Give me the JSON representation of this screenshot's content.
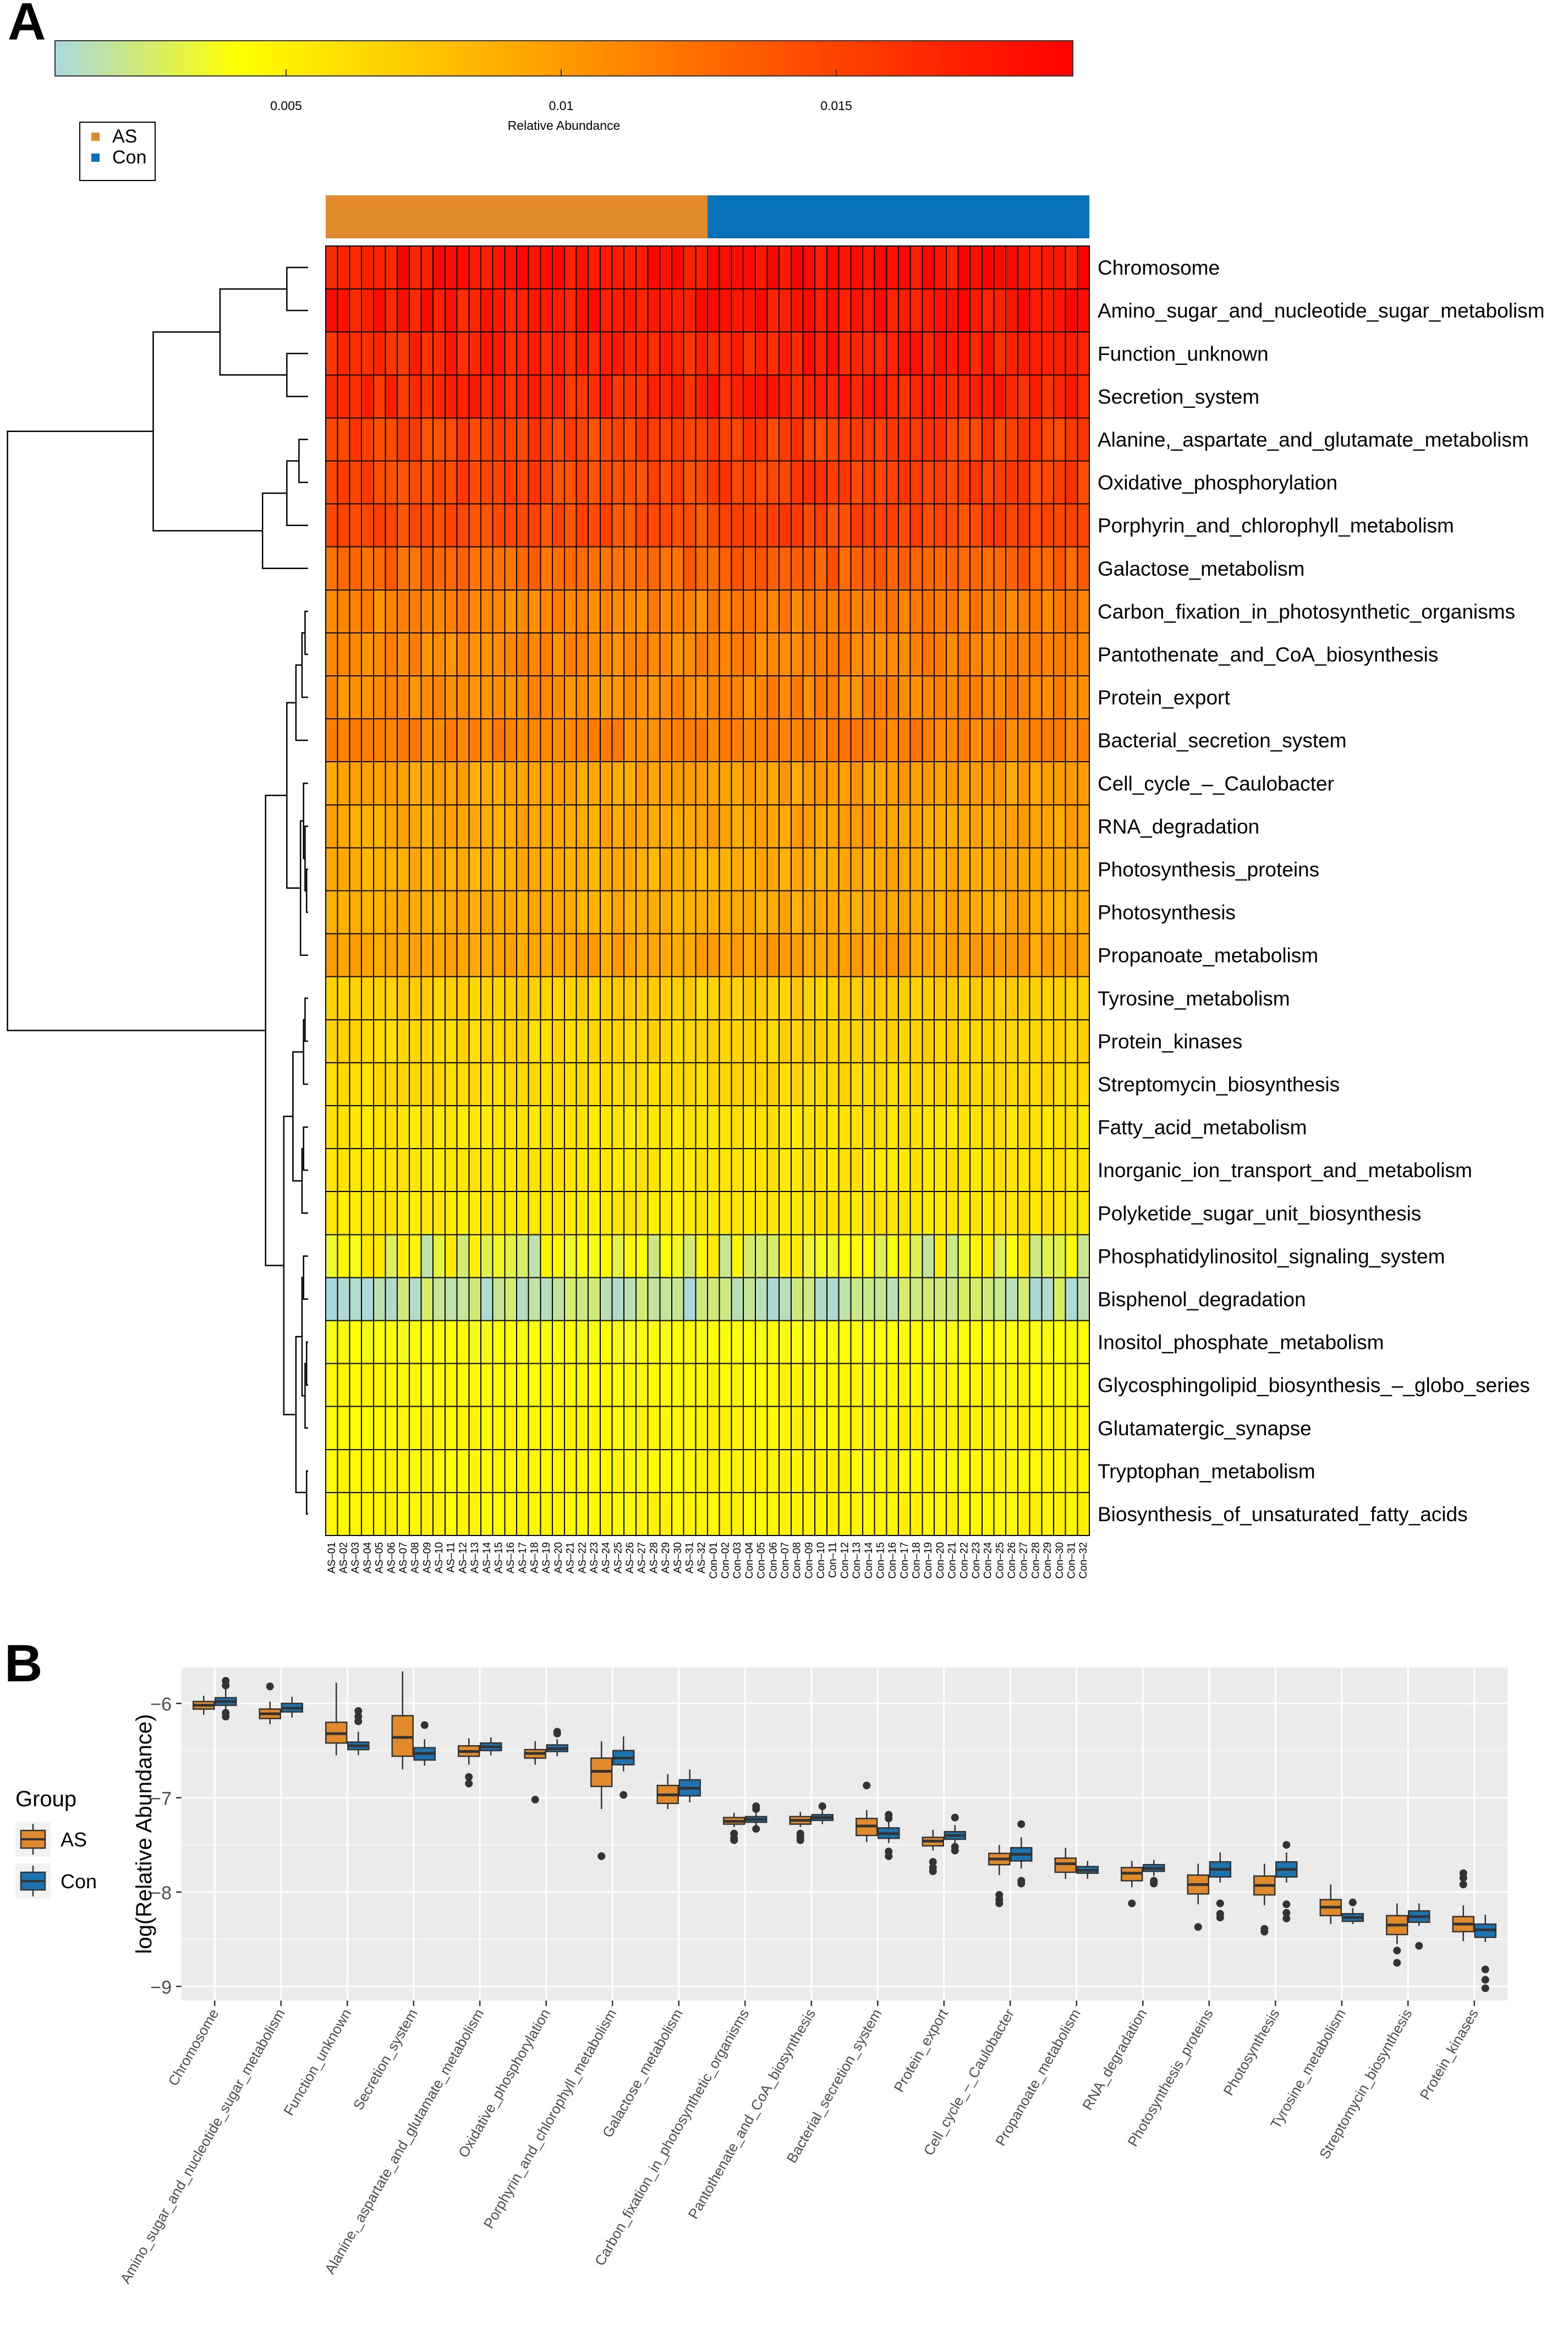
{
  "panelA": {
    "label": "A",
    "colorbar": {
      "title": "Relative Abundance",
      "ticks": [
        "0.005",
        "0.01",
        "0.015"
      ],
      "tick_values": [
        0.005,
        0.01,
        0.015
      ],
      "range": [
        0.0008,
        0.0193
      ],
      "colors": [
        "#a8d8e2",
        "#ffff00",
        "#ff9a00",
        "#ff5000",
        "#ff0000"
      ]
    },
    "legend": {
      "items": [
        {
          "label": "AS",
          "color": "#e08a2b"
        },
        {
          "label": "Con",
          "color": "#0872b8"
        }
      ]
    },
    "samples": [
      "AS–01",
      "AS–02",
      "AS–03",
      "AS–04",
      "AS–05",
      "AS–06",
      "AS–07",
      "AS–08",
      "AS–09",
      "AS–10",
      "AS–11",
      "AS–12",
      "AS–13",
      "AS–14",
      "AS–15",
      "AS–16",
      "AS–17",
      "AS–18",
      "AS–19",
      "AS–20",
      "AS–21",
      "AS–22",
      "AS–23",
      "AS–24",
      "AS–25",
      "AS–26",
      "AS–27",
      "AS–28",
      "AS–29",
      "AS–30",
      "AS–31",
      "AS–32",
      "Con–01",
      "Con–02",
      "Con–03",
      "Con–04",
      "Con–05",
      "Con–06",
      "Con–07",
      "Con–08",
      "Con–09",
      "Con–10",
      "Con–11",
      "Con–12",
      "Con–13",
      "Con–14",
      "Con–15",
      "Con–16",
      "Con–17",
      "Con–18",
      "Con–19",
      "Con–20",
      "Con–21",
      "Con–22",
      "Con–23",
      "Con–24",
      "Con–25",
      "Con–26",
      "Con–27",
      "Con–28",
      "Con–29",
      "Con–30",
      "Con–31",
      "Con–32"
    ],
    "sample_groups": {
      "AS": 32,
      "Con": 32
    },
    "rows": [
      {
        "label": "Chromosome",
        "base": 0.0178
      },
      {
        "label": "Amino_sugar_and_nucleotide_sugar_metabolism",
        "base": 0.0176
      },
      {
        "label": "Function_unknown",
        "base": 0.0168
      },
      {
        "label": "Secretion_system",
        "base": 0.0166
      },
      {
        "label": "Alanine,_aspartate_and_glutamate_metabolism",
        "base": 0.015
      },
      {
        "label": "Oxidative_phosphorylation",
        "base": 0.0148
      },
      {
        "label": "Porphyrin_and_chlorophyll_metabolism",
        "base": 0.0144
      },
      {
        "label": "Galactose_metabolism",
        "base": 0.0128
      },
      {
        "label": "Carbon_fixation_in_photosynthetic_organisms",
        "base": 0.0112
      },
      {
        "label": "Pantothenate_and_CoA_biosynthesis",
        "base": 0.011
      },
      {
        "label": "Protein_export",
        "base": 0.0108
      },
      {
        "label": "Bacterial_secretion_system",
        "base": 0.0112
      },
      {
        "label": "Cell_cycle_–_Caulobacter",
        "base": 0.0094
      },
      {
        "label": "RNA_degradation",
        "base": 0.0092
      },
      {
        "label": "Photosynthesis_proteins",
        "base": 0.0088
      },
      {
        "label": "Photosynthesis",
        "base": 0.0088
      },
      {
        "label": "Propanoate_metabolism",
        "base": 0.0094
      },
      {
        "label": "Tyrosine_metabolism",
        "base": 0.0068
      },
      {
        "label": "Protein_kinases",
        "base": 0.0064
      },
      {
        "label": "Streptomycin_biosynthesis",
        "base": 0.0062
      },
      {
        "label": "Fatty_acid_metabolism",
        "base": 0.0056
      },
      {
        "label": "Inorganic_ion_transport_and_metabolism",
        "base": 0.0055
      },
      {
        "label": "Polyketide_sugar_unit_biosynthesis",
        "base": 0.0054
      },
      {
        "label": "Phosphatidylinositol_signaling_system",
        "base": 0.0032
      },
      {
        "label": "Bisphenol_degradation",
        "base": 0.0016
      },
      {
        "label": "Inositol_phosphate_metabolism",
        "base": 0.004
      },
      {
        "label": "Glycosphingolipid_biosynthesis_–_globo_series",
        "base": 0.0044
      },
      {
        "label": "Glutamatergic_synapse",
        "base": 0.0046
      },
      {
        "label": "Tryptophan_metabolism",
        "base": 0.0045
      },
      {
        "label": "Biosynthesis_of_unsaturated_fatty_acids",
        "base": 0.0046
      }
    ]
  },
  "panelB": {
    "label": "B",
    "legend_title": "Group",
    "legend_items": [
      {
        "label": "AS",
        "color": "#e08a2b"
      },
      {
        "label": "Con",
        "color": "#1d72b0"
      }
    ]
  },
  "chart_data": [
    {
      "type": "heatmap",
      "title": "",
      "colorbar_label": "Relative Abundance",
      "colorbar_ticks": [
        0.005,
        0.01,
        0.015
      ],
      "column_groups": [
        "AS",
        "Con"
      ],
      "n_columns_per_group": 32,
      "rows": [
        "Chromosome",
        "Amino_sugar_and_nucleotide_sugar_metabolism",
        "Function_unknown",
        "Secretion_system",
        "Alanine,_aspartate_and_glutamate_metabolism",
        "Oxidative_phosphorylation",
        "Porphyrin_and_chlorophyll_metabolism",
        "Galactose_metabolism",
        "Carbon_fixation_in_photosynthetic_organisms",
        "Pantothenate_and_CoA_biosynthesis",
        "Protein_export",
        "Bacterial_secretion_system",
        "Cell_cycle_–_Caulobacter",
        "RNA_degradation",
        "Photosynthesis_proteins",
        "Photosynthesis",
        "Propanoate_metabolism",
        "Tyrosine_metabolism",
        "Protein_kinases",
        "Streptomycin_biosynthesis",
        "Fatty_acid_metabolism",
        "Inorganic_ion_transport_and_metabolism",
        "Polyketide_sugar_unit_biosynthesis",
        "Phosphatidylinositol_signaling_system",
        "Bisphenol_degradation",
        "Inositol_phosphate_metabolism",
        "Glycosphingolipid_biosynthesis_–_globo_series",
        "Glutamatergic_synapse",
        "Tryptophan_metabolism",
        "Biosynthesis_of_unsaturated_fatty_acids"
      ]
    },
    {
      "type": "box",
      "title": "",
      "xlabel": "",
      "ylabel": "log(Relative Abundance)",
      "ylim": [
        -9.15,
        -5.62
      ],
      "yticks": [
        -6,
        -7,
        -8,
        -9
      ],
      "legend_title": "Group",
      "categories": [
        "Chromosome",
        "Amino_sugar_and_nucleotide_sugar_metabolism",
        "Function_unknown",
        "Secretion_system",
        "Alanine,_aspartate_and_glutamate_metabolism",
        "Oxidative_phosphorylation",
        "Porphyrin_and_chlorophyll_metabolism",
        "Galactose_metabolism",
        "Carbon_fixation_in_photosynthetic_organisms",
        "Pantothenate_and_CoA_biosynthesis",
        "Bacterial_secretion_system",
        "Protein_export",
        "Cell_cycle_–_Caulobacter",
        "Propanoate_metabolism",
        "RNA_degradation",
        "Photosynthesis_proteins",
        "Photosynthesis",
        "Tyrosine_metabolism",
        "Streptomycin_biosynthesis",
        "Protein_kinases"
      ],
      "series": [
        {
          "name": "AS",
          "boxes": [
            {
              "min": -6.12,
              "q1": -6.06,
              "median": -6.02,
              "q3": -5.98,
              "max": -5.92,
              "outliers": []
            },
            {
              "min": -6.22,
              "q1": -6.16,
              "median": -6.11,
              "q3": -6.06,
              "max": -5.98,
              "outliers": [
                -5.82
              ]
            },
            {
              "min": -6.55,
              "q1": -6.42,
              "median": -6.32,
              "q3": -6.2,
              "max": -5.78,
              "outliers": []
            },
            {
              "min": -6.7,
              "q1": -6.56,
              "median": -6.36,
              "q3": -6.13,
              "max": -5.66,
              "outliers": []
            },
            {
              "min": -6.65,
              "q1": -6.56,
              "median": -6.51,
              "q3": -6.45,
              "max": -6.37,
              "outliers": [
                -6.78,
                -6.85
              ]
            },
            {
              "min": -6.65,
              "q1": -6.58,
              "median": -6.53,
              "q3": -6.49,
              "max": -6.4,
              "outliers": [
                -7.02
              ]
            },
            {
              "min": -7.12,
              "q1": -6.88,
              "median": -6.72,
              "q3": -6.58,
              "max": -6.4,
              "outliers": [
                -7.62
              ]
            },
            {
              "min": -7.12,
              "q1": -7.06,
              "median": -6.97,
              "q3": -6.87,
              "max": -6.75,
              "outliers": []
            },
            {
              "min": -7.31,
              "q1": -7.28,
              "median": -7.25,
              "q3": -7.21,
              "max": -7.16,
              "outliers": [
                -7.38,
                -7.43,
                -7.45
              ]
            },
            {
              "min": -7.31,
              "q1": -7.28,
              "median": -7.24,
              "q3": -7.2,
              "max": -7.15,
              "outliers": [
                -7.38,
                -7.42,
                -7.45
              ]
            },
            {
              "min": -7.47,
              "q1": -7.4,
              "median": -7.3,
              "q3": -7.22,
              "max": -7.13,
              "outliers": [
                -6.87
              ]
            },
            {
              "min": -7.56,
              "q1": -7.51,
              "median": -7.46,
              "q3": -7.42,
              "max": -7.34,
              "outliers": [
                -7.68,
                -7.74,
                -7.78
              ]
            },
            {
              "min": -7.82,
              "q1": -7.71,
              "median": -7.65,
              "q3": -7.59,
              "max": -7.5,
              "outliers": [
                -8.03,
                -8.08,
                -8.12
              ]
            },
            {
              "min": -7.86,
              "q1": -7.79,
              "median": -7.7,
              "q3": -7.64,
              "max": -7.53,
              "outliers": []
            },
            {
              "min": -7.95,
              "q1": -7.88,
              "median": -7.8,
              "q3": -7.74,
              "max": -7.67,
              "outliers": [
                -8.12
              ]
            },
            {
              "min": -8.13,
              "q1": -8.02,
              "median": -7.92,
              "q3": -7.82,
              "max": -7.7,
              "outliers": [
                -8.37
              ]
            },
            {
              "min": -8.14,
              "q1": -8.03,
              "median": -7.93,
              "q3": -7.83,
              "max": -7.7,
              "outliers": [
                -8.39,
                -8.42
              ]
            },
            {
              "min": -8.34,
              "q1": -8.25,
              "median": -8.16,
              "q3": -8.08,
              "max": -7.92,
              "outliers": []
            },
            {
              "min": -8.55,
              "q1": -8.45,
              "median": -8.35,
              "q3": -8.25,
              "max": -8.12,
              "outliers": [
                -8.62,
                -8.75
              ]
            },
            {
              "min": -8.52,
              "q1": -8.42,
              "median": -8.34,
              "q3": -8.26,
              "max": -8.14,
              "outliers": [
                -7.8,
                -7.85,
                -7.92
              ]
            }
          ]
        },
        {
          "name": "Con",
          "boxes": [
            {
              "min": -6.08,
              "q1": -6.02,
              "median": -5.98,
              "q3": -5.94,
              "max": -5.85,
              "outliers": [
                -5.76,
                -5.81,
                -6.1,
                -6.14
              ]
            },
            {
              "min": -6.15,
              "q1": -6.09,
              "median": -6.05,
              "q3": -6.0,
              "max": -5.93,
              "outliers": []
            },
            {
              "min": -6.55,
              "q1": -6.49,
              "median": -6.45,
              "q3": -6.41,
              "max": -6.3,
              "outliers": [
                -6.08,
                -6.14,
                -6.19
              ]
            },
            {
              "min": -6.66,
              "q1": -6.6,
              "median": -6.53,
              "q3": -6.47,
              "max": -6.38,
              "outliers": [
                -6.23
              ]
            },
            {
              "min": -6.55,
              "q1": -6.5,
              "median": -6.46,
              "q3": -6.42,
              "max": -6.36,
              "outliers": []
            },
            {
              "min": -6.56,
              "q1": -6.51,
              "median": -6.48,
              "q3": -6.44,
              "max": -6.38,
              "outliers": [
                -6.3,
                -6.32
              ]
            },
            {
              "min": -6.72,
              "q1": -6.65,
              "median": -6.58,
              "q3": -6.5,
              "max": -6.35,
              "outliers": [
                -6.97
              ]
            },
            {
              "min": -7.05,
              "q1": -6.98,
              "median": -6.9,
              "q3": -6.81,
              "max": -6.7,
              "outliers": []
            },
            {
              "min": -7.3,
              "q1": -7.26,
              "median": -7.23,
              "q3": -7.2,
              "max": -7.14,
              "outliers": [
                -7.09,
                -7.12,
                -7.33
              ]
            },
            {
              "min": -7.28,
              "q1": -7.24,
              "median": -7.21,
              "q3": -7.18,
              "max": -7.13,
              "outliers": [
                -7.09
              ]
            },
            {
              "min": -7.48,
              "q1": -7.43,
              "median": -7.38,
              "q3": -7.32,
              "max": -7.25,
              "outliers": [
                -7.18,
                -7.22,
                -7.57,
                -7.62
              ]
            },
            {
              "min": -7.48,
              "q1": -7.44,
              "median": -7.4,
              "q3": -7.36,
              "max": -7.29,
              "outliers": [
                -7.21,
                -7.52,
                -7.56
              ]
            },
            {
              "min": -7.75,
              "q1": -7.67,
              "median": -7.6,
              "q3": -7.53,
              "max": -7.42,
              "outliers": [
                -7.28,
                -7.88,
                -7.91
              ]
            },
            {
              "min": -7.86,
              "q1": -7.8,
              "median": -7.77,
              "q3": -7.73,
              "max": -7.67,
              "outliers": []
            },
            {
              "min": -7.83,
              "q1": -7.78,
              "median": -7.75,
              "q3": -7.71,
              "max": -7.66,
              "outliers": [
                -7.88,
                -7.91
              ]
            },
            {
              "min": -7.9,
              "q1": -7.84,
              "median": -7.76,
              "q3": -7.68,
              "max": -7.58,
              "outliers": [
                -8.12,
                -8.23,
                -8.27
              ]
            },
            {
              "min": -7.9,
              "q1": -7.84,
              "median": -7.76,
              "q3": -7.68,
              "max": -7.58,
              "outliers": [
                -7.5,
                -8.13,
                -8.22,
                -8.28
              ]
            },
            {
              "min": -8.34,
              "q1": -8.31,
              "median": -8.27,
              "q3": -8.23,
              "max": -8.17,
              "outliers": [
                -8.11
              ]
            },
            {
              "min": -8.36,
              "q1": -8.32,
              "median": -8.26,
              "q3": -8.2,
              "max": -8.12,
              "outliers": [
                -8.57
              ]
            },
            {
              "min": -8.53,
              "q1": -8.48,
              "median": -8.4,
              "q3": -8.34,
              "max": -8.24,
              "outliers": [
                -8.82,
                -8.93,
                -9.02
              ]
            }
          ]
        }
      ]
    }
  ]
}
